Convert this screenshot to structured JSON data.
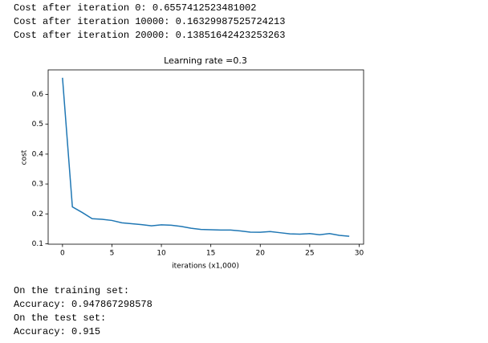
{
  "output_top": [
    "Cost after iteration 0: 0.6557412523481002",
    "Cost after iteration 10000: 0.16329987525724213",
    "Cost after iteration 20000: 0.13851642423253263"
  ],
  "chart_data": {
    "type": "line",
    "title": "Learning rate =0.3",
    "x_label": "iterations (x1,000)",
    "y_label": "cost",
    "x": [
      0,
      1,
      2,
      3,
      4,
      5,
      6,
      7,
      8,
      9,
      10,
      11,
      12,
      13,
      14,
      15,
      16,
      17,
      18,
      19,
      20,
      21,
      22,
      23,
      24,
      25,
      26,
      27,
      28,
      29
    ],
    "series": [
      {
        "name": "cost",
        "color": "#1f77b4",
        "values": [
          0.6557,
          0.2235,
          0.2045,
          0.184,
          0.182,
          0.178,
          0.17,
          0.167,
          0.164,
          0.16,
          0.1633,
          0.162,
          0.158,
          0.152,
          0.148,
          0.147,
          0.146,
          0.146,
          0.143,
          0.139,
          0.1385,
          0.141,
          0.137,
          0.133,
          0.132,
          0.134,
          0.13,
          0.134,
          0.128,
          0.125
        ]
      }
    ],
    "xlim": [
      -1.45,
      30.45
    ],
    "ylim": [
      0.0985,
      0.682
    ],
    "xticks": [
      0,
      5,
      10,
      15,
      20,
      25,
      30
    ],
    "yticks": [
      0.1,
      0.2,
      0.3,
      0.4,
      0.5,
      0.6
    ]
  },
  "output_bottom": [
    "On the training set:",
    "Accuracy: 0.947867298578",
    "On the test set:",
    "Accuracy: 0.915"
  ]
}
